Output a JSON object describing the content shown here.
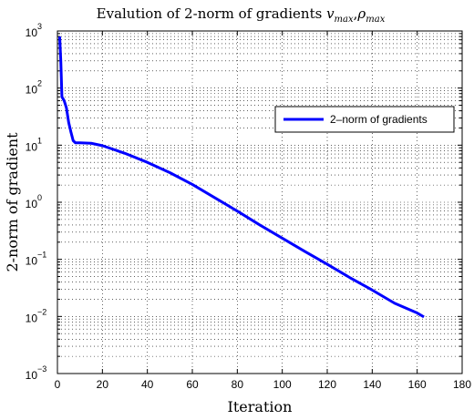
{
  "chart_data": {
    "type": "line",
    "title": {
      "main": "Evalution of 2-norm of gradients ",
      "var1": "v",
      "var1_sub": "max",
      "sep": ",",
      "var2": "ρ",
      "var2_sub": "max"
    },
    "xlabel": "Iteration",
    "ylabel": "2-norm of gradient",
    "xlim": [
      0,
      180
    ],
    "ylim": [
      0.001,
      1000
    ],
    "yscale": "log",
    "grid": true,
    "legend_position": "right",
    "x_ticks": [
      0,
      20,
      40,
      60,
      80,
      100,
      120,
      140,
      160,
      180
    ],
    "x_tick_labels": [
      "0",
      "20",
      "40",
      "60",
      "80",
      "100",
      "120",
      "140",
      "160",
      "180"
    ],
    "y_ticks": [
      0.001,
      0.01,
      0.1,
      1,
      10,
      100,
      1000
    ],
    "y_tick_labels": [
      {
        "base": "10",
        "exp": "−3"
      },
      {
        "base": "10",
        "exp": "−2"
      },
      {
        "base": "10",
        "exp": "−1"
      },
      {
        "base": "10",
        "exp": "0"
      },
      {
        "base": "10",
        "exp": "1"
      },
      {
        "base": "10",
        "exp": "2"
      },
      {
        "base": "10",
        "exp": "3"
      }
    ],
    "series": [
      {
        "name": "2–norm of gradients",
        "color": "#0000ff",
        "x": [
          1,
          1.5,
          2,
          3,
          4,
          5,
          6,
          7,
          8,
          10,
          15,
          20,
          30,
          40,
          50,
          60,
          70,
          80,
          90,
          100,
          110,
          120,
          130,
          140,
          150,
          160,
          163
        ],
        "y": [
          800,
          300,
          70,
          60,
          45,
          25,
          17,
          12,
          11,
          11,
          10.8,
          9.8,
          7.2,
          5.0,
          3.3,
          2.05,
          1.2,
          0.7,
          0.4,
          0.235,
          0.138,
          0.082,
          0.048,
          0.029,
          0.017,
          0.0115,
          0.0098
        ]
      }
    ]
  }
}
